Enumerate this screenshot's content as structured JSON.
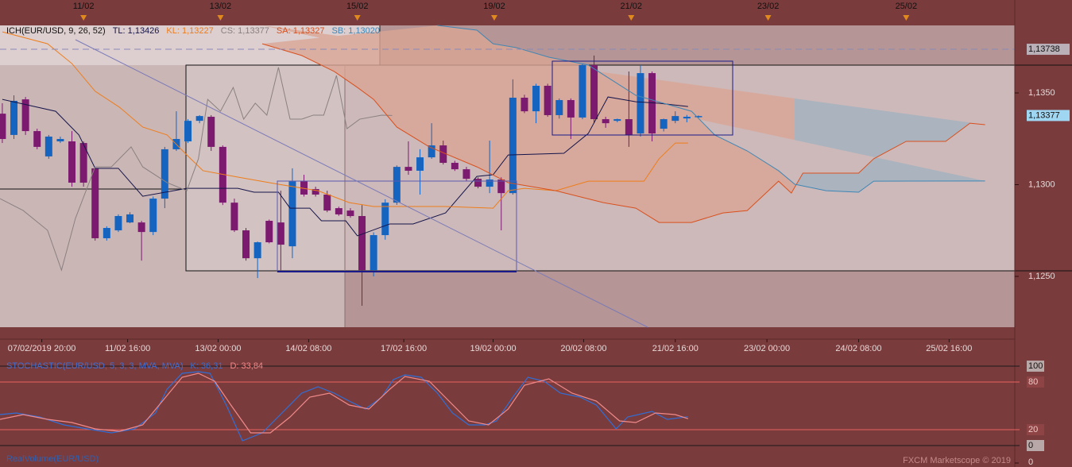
{
  "chart_data": [
    {
      "type": "candlestick",
      "title": "ICH(EUR/USD, 9, 26, 52)",
      "up_color": "#1565c0",
      "down_color": "#7b1a6e",
      "open": [
        1.13387,
        1.13271,
        1.13465,
        1.13292,
        1.13154,
        1.13236,
        1.13236,
        1.13227,
        1.13089,
        1.12708,
        1.12751,
        1.12794,
        1.12794,
        1.12742,
        1.12924,
        1.13193,
        1.13236,
        1.13348,
        1.1337,
        1.13206,
        1.12902,
        1.12751,
        1.12599,
        1.12803,
        1.12794,
        1.12664,
        1.13019,
        1.12976,
        1.12946,
        1.12872,
        1.12859,
        1.12829,
        1.12534,
        1.12725,
        1.12902,
        1.13097,
        1.13076,
        1.13149,
        1.13214,
        1.13119,
        1.13084,
        1.13032,
        1.12989,
        1.13028,
        1.12954,
        1.13474,
        1.134,
        1.13539,
        1.13379,
        1.13461,
        1.13366,
        1.13652,
        1.13357,
        1.13348,
        1.13357,
        1.13279,
        1.13608,
        1.13305,
        1.13348,
        1.13361,
        1.1337
      ],
      "high": [
        1.13444,
        1.13487,
        1.13478,
        1.13305,
        1.13271,
        1.13262,
        1.13292,
        1.13236,
        1.13097,
        1.12773,
        1.12838,
        1.1285,
        1.12803,
        1.12935,
        1.13206,
        1.134,
        1.13357,
        1.13379,
        1.13379,
        1.13214,
        1.12924,
        1.12764,
        1.1269,
        1.1281,
        1.12967,
        1.13089,
        1.13054,
        1.12989,
        1.12967,
        1.1288,
        1.12872,
        1.12889,
        1.1274,
        1.1292,
        1.13105,
        1.13236,
        1.13193,
        1.13335,
        1.1324,
        1.1313,
        1.13097,
        1.1304,
        1.1324,
        1.1304,
        1.13574,
        1.1349,
        1.1355,
        1.1355,
        1.1347,
        1.1347,
        1.1366,
        1.13704,
        1.1337,
        1.1336,
        1.13617,
        1.13652,
        1.13617,
        1.1336,
        1.134,
        1.1338,
        1.13377
      ],
      "low": [
        1.13227,
        1.13249,
        1.13271,
        1.13193,
        1.13141,
        1.13227,
        1.12989,
        1.12989,
        1.12695,
        1.12695,
        1.12742,
        1.1279,
        1.12586,
        1.12725,
        1.12872,
        1.13184,
        1.13227,
        1.13335,
        1.13184,
        1.12889,
        1.12742,
        1.12586,
        1.12491,
        1.1268,
        1.12534,
        1.12599,
        1.12935,
        1.12935,
        1.1285,
        1.1283,
        1.1282,
        1.1234,
        1.125,
        1.127,
        1.1289,
        1.13054,
        1.12946,
        1.13141,
        1.1311,
        1.13075,
        1.1302,
        1.1298,
        1.12954,
        1.12751,
        1.12946,
        1.1339,
        1.13335,
        1.1337,
        1.1336,
        1.13249,
        1.13357,
        1.13335,
        1.1331,
        1.1334,
        1.13206,
        1.13262,
        1.13236,
        1.1329,
        1.13335,
        1.1334,
        1.13365
      ],
      "close": [
        1.13249,
        1.13457,
        1.13292,
        1.13206,
        1.13262,
        1.13249,
        1.13011,
        1.13011,
        1.12708,
        1.12764,
        1.12829,
        1.12838,
        1.12742,
        1.12924,
        1.13193,
        1.13249,
        1.13348,
        1.13374,
        1.13206,
        1.12902,
        1.12751,
        1.12599,
        1.12686,
        1.12686,
        1.12673,
        1.13019,
        1.12946,
        1.12946,
        1.12859,
        1.12838,
        1.12829,
        1.12534,
        1.12725,
        1.12902,
        1.13097,
        1.13076,
        1.13149,
        1.13214,
        1.13119,
        1.13084,
        1.13032,
        1.12989,
        1.13028,
        1.12954,
        1.13474,
        1.134,
        1.13539,
        1.13379,
        1.13461,
        1.13366,
        1.13652,
        1.13357,
        1.13335,
        1.13357,
        1.13271,
        1.13608,
        1.13279,
        1.13357,
        1.13374,
        1.1337,
        1.13374
      ],
      "series": [
        {
          "legend": "TL: 1,13426",
          "color": "#14144a",
          "x": [
            0,
            4.6,
            6.6,
            8,
            10,
            12.1,
            15.9,
            20.3,
            21.7,
            23.8,
            24.8,
            26.5,
            27.5,
            29.6,
            30.6,
            33.4,
            35.4,
            38.2,
            40.9,
            42.3,
            43.6,
            48.4,
            50.5,
            52.2,
            54.6,
            56.6,
            59.1
          ],
          "values": [
            1.13465,
            1.134,
            1.13271,
            1.13089,
            1.13089,
            1.12937,
            1.1298,
            1.1298,
            1.12959,
            1.12959,
            1.12872,
            1.12872,
            1.12803,
            1.12803,
            1.12721,
            1.12786,
            1.12786,
            1.12846,
            1.13045,
            1.13054,
            1.13162,
            1.13171,
            1.13279,
            1.13478,
            1.13452,
            1.13444,
            1.13426
          ]
        },
        {
          "legend": "KL: 1,13227",
          "color": "#ee7d1a",
          "x": [
            0,
            3.9,
            6,
            8,
            10.1,
            12.1,
            14.2,
            15.9,
            17.3,
            20.3,
            23.8,
            27.2,
            29.9,
            32,
            38.2,
            42.3,
            43.6,
            45,
            47.7,
            50.5,
            55.3,
            56.6,
            58,
            59.1
          ],
          "values": [
            1.13833,
            1.13768,
            1.1366,
            1.13509,
            1.13422,
            1.13314,
            1.13271,
            1.13162,
            1.13076,
            1.13041,
            1.13002,
            1.12967,
            1.12902,
            1.12881,
            1.12881,
            1.12872,
            1.12967,
            1.1298,
            1.12967,
            1.13019,
            1.13019,
            1.13141,
            1.13227,
            1.13227
          ]
        },
        {
          "legend": "CS: 1,13377",
          "color": "#8a8080",
          "x": [
            -0.2,
            1.8,
            3.9,
            5.1,
            6.3,
            8,
            9.4,
            11.1,
            12.1,
            14.2,
            15.9,
            16.9,
            17.7,
            18.8,
            19.9,
            20.8,
            21.8,
            22.8,
            23.8,
            24.8,
            25.8,
            26.8,
            27.7,
            28.8,
            29.7,
            30.8,
            32.7,
            33.6
          ],
          "values": [
            1.12924,
            1.12859,
            1.12751,
            1.12534,
            1.12816,
            1.13097,
            1.13097,
            1.13206,
            1.13097,
            1.13011,
            1.12967,
            1.13141,
            1.13465,
            1.134,
            1.1353,
            1.13357,
            1.13444,
            1.13379,
            1.13639,
            1.13357,
            1.13357,
            1.13379,
            1.13379,
            1.13595,
            1.13305,
            1.13357,
            1.13379,
            1.13377
          ]
        },
        {
          "legend": "SA: 1,13327",
          "color": "#d9501e",
          "x": [
            22.4,
            25.8,
            28.6,
            30.6,
            32,
            34,
            36.8,
            40.9,
            43.6,
            47.7,
            51.8,
            54.6,
            56.6,
            59.4,
            62.1,
            64.2,
            66.9,
            68,
            69,
            73.8,
            75.1,
            77.9,
            81.3,
            83.4,
            84.7
          ],
          "values": [
            1.13768,
            1.13704,
            1.13617,
            1.1353,
            1.13465,
            1.13314,
            1.13206,
            1.13097,
            1.13011,
            1.12967,
            1.12902,
            1.12872,
            1.12794,
            1.12794,
            1.12846,
            1.12859,
            1.13019,
            1.12954,
            1.13063,
            1.13063,
            1.13141,
            1.13236,
            1.13236,
            1.13335,
            1.13327
          ]
        },
        {
          "legend": "SB: 1,13020",
          "color": "#3f86b5",
          "x": [
            37.5,
            40.9,
            42.3,
            44.3,
            47.1,
            50.5,
            54.6,
            59.4,
            61.4,
            64.2,
            66.9,
            68.3,
            71,
            73.8,
            75.1,
            84.7
          ],
          "values": [
            1.13868,
            1.13842,
            1.13768,
            1.13747,
            1.13695,
            1.13652,
            1.13487,
            1.134,
            1.13271,
            1.13184,
            1.13076,
            1.13002,
            1.12967,
            1.12959,
            1.13019,
            1.1302
          ]
        }
      ],
      "cloud_colors": [
        "#d9a595",
        "#a6b2bf"
      ],
      "xlim": [
        -0.2,
        87.26
      ],
      "xticks": [
        {
          "value": 3.4,
          "label": "07/02/2019 20:00"
        },
        {
          "value": 10.8,
          "label": "11/02 16:00"
        },
        {
          "value": 18.6,
          "label": "13/02 00:00"
        },
        {
          "value": 26.4,
          "label": "14/02 08:00"
        },
        {
          "value": 34.6,
          "label": "17/02 16:00"
        },
        {
          "value": 42.3,
          "label": "19/02 00:00"
        },
        {
          "value": 50.1,
          "label": "20/02 08:00"
        },
        {
          "value": 58.0,
          "label": "21/02 16:00"
        },
        {
          "value": 65.9,
          "label": "23/02 00:00"
        },
        {
          "value": 73.8,
          "label": "24/02 08:00"
        },
        {
          "value": 81.6,
          "label": "25/02 16:00"
        }
      ],
      "top_xticks": [
        {
          "value": 7.0,
          "label": "11/02"
        },
        {
          "value": 18.8,
          "label": "13/02"
        },
        {
          "value": 30.6,
          "label": "15/02"
        },
        {
          "value": 42.4,
          "label": "19/02"
        },
        {
          "value": 54.2,
          "label": "21/02"
        },
        {
          "value": 66.0,
          "label": "23/02"
        },
        {
          "value": 77.9,
          "label": "25/02"
        }
      ],
      "ylim": [
        1.12223,
        1.13868
      ],
      "yticks": [
        {
          "value": 1.125,
          "label": "1,1250"
        },
        {
          "value": 1.13,
          "label": "1,1300"
        },
        {
          "value": 1.135,
          "label": "1,1350"
        }
      ],
      "price_markers": [
        {
          "value": 1.13738,
          "label": "1,13738",
          "color": "#b9b0b8",
          "line": true
        },
        {
          "value": 1.13377,
          "label": "1,13377",
          "color": "#9fd6f2",
          "line": false
        }
      ]
    },
    {
      "type": "line",
      "title": "STOCHASTIC(EUR/USD, 5, 3, 3, MVA, MVA)",
      "title_color": "#3f6fd6",
      "series": [
        {
          "legend": "K: 36,31",
          "color": "#2f6fd8",
          "x": [
            -0.2,
            1.2,
            3.2,
            5.3,
            7.3,
            9.4,
            11.4,
            13.2,
            14.2,
            15.5,
            16.9,
            17.9,
            19.3,
            20.7,
            22.4,
            24.1,
            25.8,
            27.2,
            28.6,
            29.9,
            31.3,
            32.7,
            33.7,
            34.7,
            36.1,
            37.5,
            38.8,
            40.2,
            41.6,
            42.6,
            44,
            45.3,
            46.7,
            48.1,
            49.8,
            51.2,
            52.9,
            53.9,
            56,
            57.3,
            59.1
          ],
          "values": [
            39,
            41,
            36,
            26,
            21,
            16,
            21,
            41,
            71,
            91,
            93,
            91,
            51,
            6,
            16,
            41,
            66,
            74,
            66,
            56,
            46,
            61,
            83,
            89,
            86,
            66,
            41,
            26,
            26,
            31,
            61,
            86,
            81,
            66,
            61,
            51,
            21,
            36,
            43,
            33,
            36.31
          ]
        },
        {
          "legend": "D: 33,84",
          "color": "#f08a8a",
          "x": [
            -0.2,
            1.8,
            3.9,
            6,
            8,
            10.1,
            12.1,
            13.8,
            15.5,
            16.9,
            18.3,
            19.7,
            21.4,
            23.1,
            24.8,
            26.5,
            28.2,
            29.9,
            31.6,
            33.4,
            34.7,
            36.8,
            38.5,
            40.2,
            41.9,
            43.6,
            45,
            47.1,
            49.1,
            51.2,
            53.2,
            54.6,
            56.3,
            58,
            59.1
          ],
          "values": [
            33,
            39,
            33,
            29,
            21,
            18,
            26,
            56,
            86,
            91,
            81,
            51,
            16,
            16,
            36,
            61,
            66,
            51,
            46,
            71,
            87,
            81,
            56,
            31,
            26,
            46,
            76,
            84,
            66,
            56,
            31,
            29,
            41,
            39,
            33.84
          ]
        }
      ],
      "xlim": [
        -0.2,
        87.26
      ],
      "ylim": [
        0,
        100
      ],
      "yticks": [
        0,
        20,
        80,
        100
      ]
    },
    {
      "type": "volume",
      "title": "RealVolume(EUR/USD)",
      "yticks": [
        0
      ]
    }
  ],
  "footer": "FXCM Marketscope © 2019"
}
